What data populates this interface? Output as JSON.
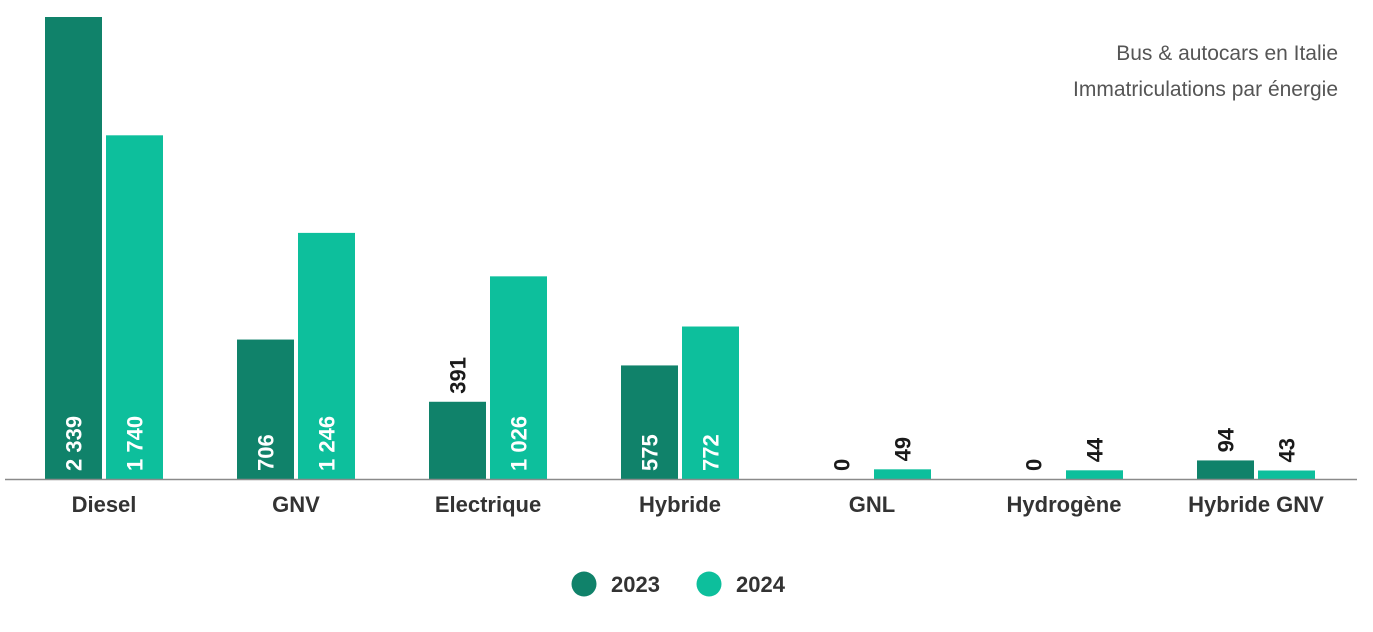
{
  "chart_data": {
    "type": "bar",
    "title_lines": [
      "Bus & autocars en Italie",
      "Immatriculations par énergie"
    ],
    "categories": [
      "Diesel",
      "GNV",
      "Electrique",
      "Hybride",
      "GNL",
      "Hydrogène",
      "Hybride GNV"
    ],
    "series": [
      {
        "name": "2023",
        "color": "#10826a",
        "values": [
          2339,
          706,
          391,
          575,
          0,
          0,
          94
        ],
        "labels": [
          "2 339",
          "706",
          "391",
          "575",
          "0",
          "0",
          "94"
        ]
      },
      {
        "name": "2024",
        "color": "#0dbf9c",
        "values": [
          1740,
          1246,
          1026,
          772,
          49,
          44,
          43
        ],
        "labels": [
          "1 740",
          "1 246",
          "1 026",
          "772",
          "49",
          "44",
          "43"
        ]
      }
    ],
    "ylim": [
      0,
      2339
    ],
    "grid": false,
    "legend_position": "bottom-center",
    "xlabel": "",
    "ylabel": ""
  }
}
